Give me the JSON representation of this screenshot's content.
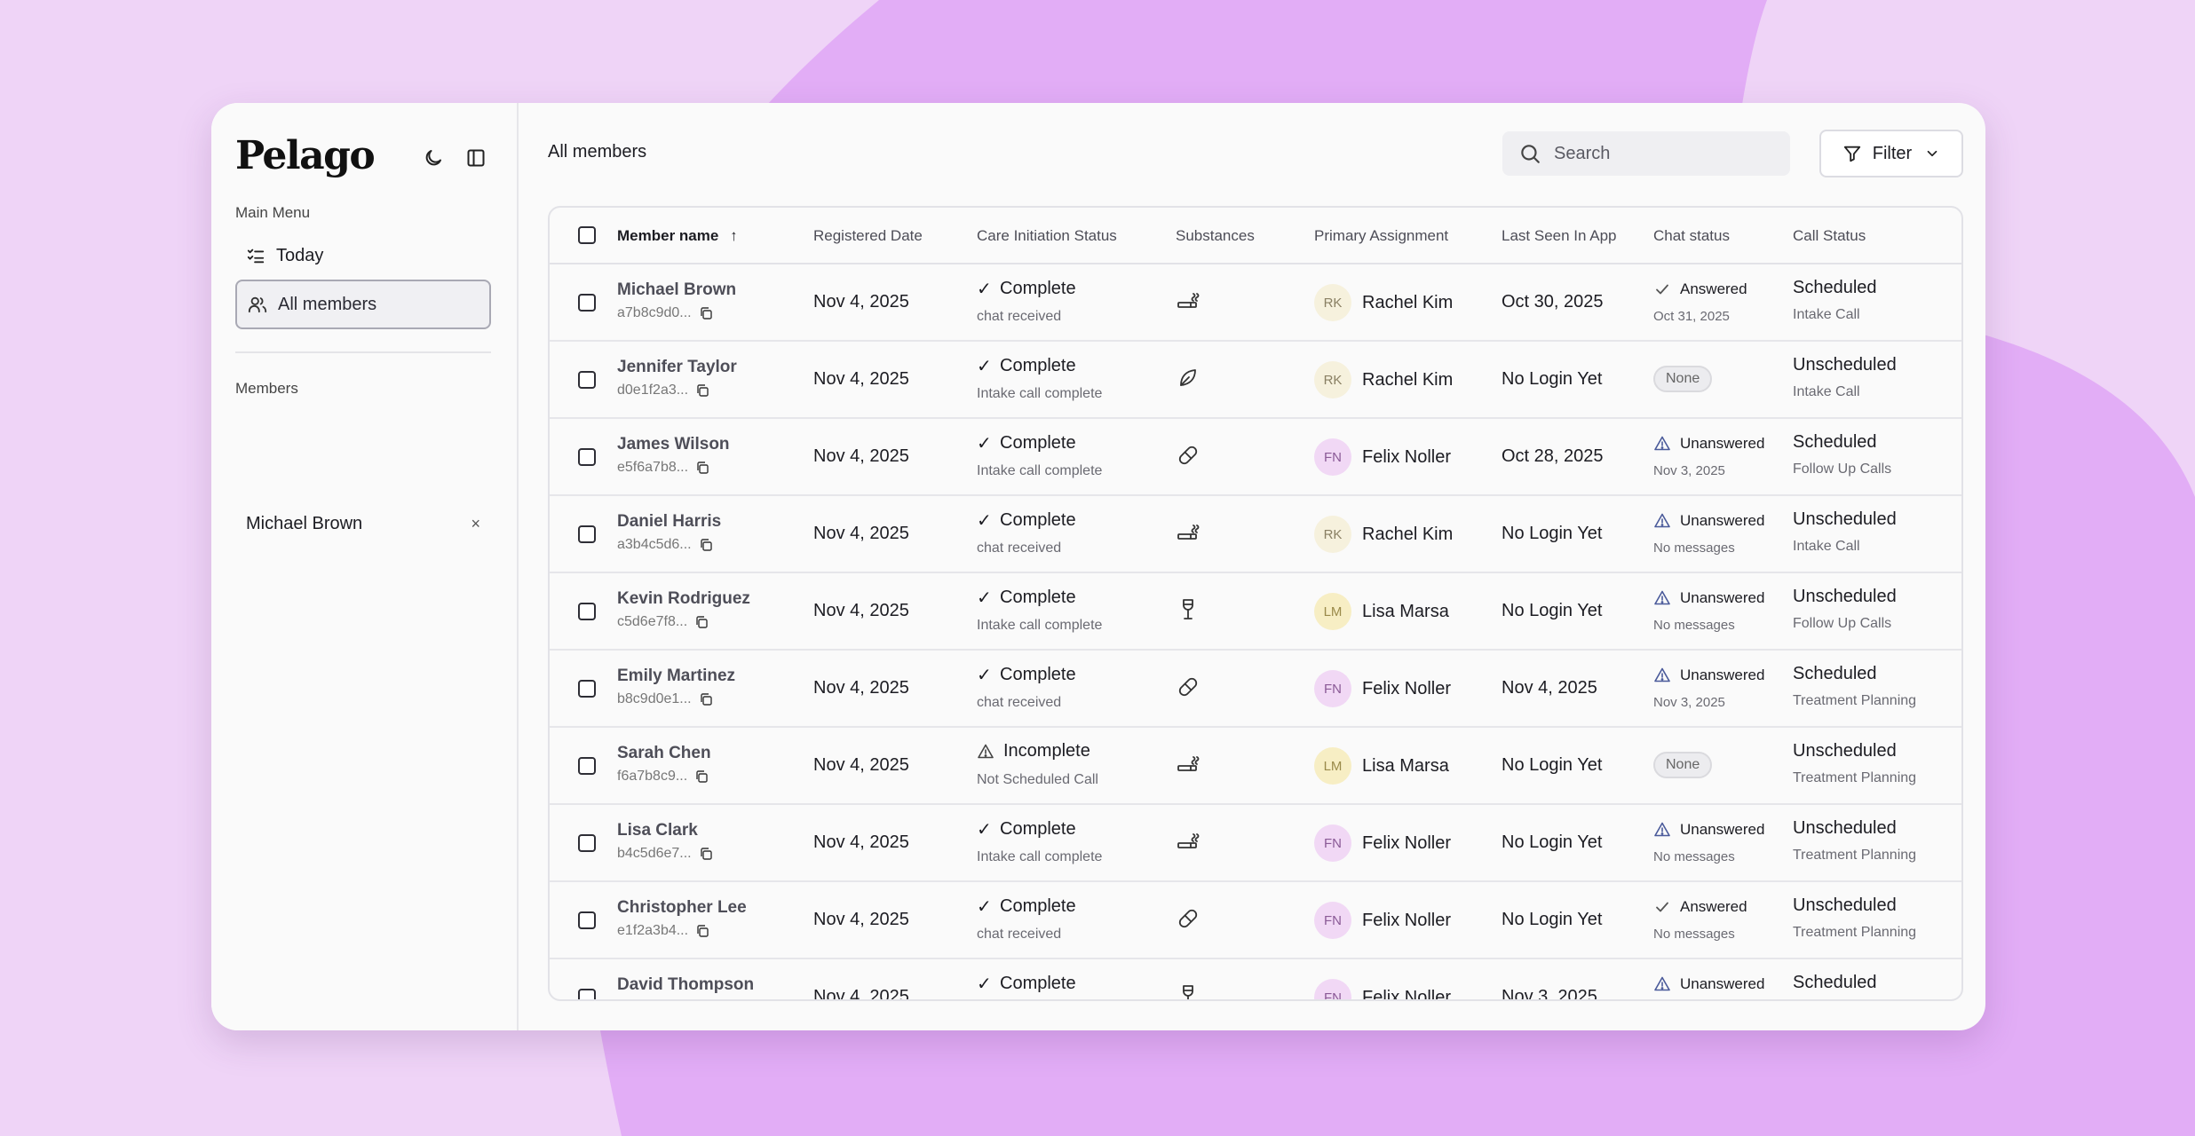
{
  "app": {
    "logo": "Pelago"
  },
  "sidebar": {
    "main_menu_label": "Main Menu",
    "nav": [
      {
        "label": "Today",
        "icon": "checklist-icon",
        "active": false
      },
      {
        "label": "All members",
        "icon": "users-icon",
        "active": true
      }
    ],
    "members_label": "Members",
    "members": [
      {
        "name": "Michael Brown",
        "close": "×"
      }
    ],
    "icons": [
      "moon-icon",
      "sidebar-toggle-icon"
    ]
  },
  "header": {
    "title": "All members",
    "search_placeholder": "Search",
    "filter_label": "Filter"
  },
  "table": {
    "columns": [
      "Member name",
      "Registered Date",
      "Care Initiation Status",
      "Substances",
      "Primary Assignment",
      "Last Seen In App",
      "Chat status",
      "Call Status"
    ],
    "sort_indicator": "↑",
    "rows": [
      {
        "name": "Michael Brown",
        "id": "a7b8c9d0...",
        "registered": "Nov 4, 2025",
        "care": "Complete",
        "care_sub": "chat received",
        "care_icon": "check",
        "substance": "cigarette-icon",
        "initials": "RK",
        "assignee": "Rachel Kim",
        "last_seen": "Oct 30, 2025",
        "chat": "Answered",
        "chat_icon": "check",
        "chat_sub": "Oct 31, 2025",
        "call": "Scheduled",
        "call_sub": "Intake Call"
      },
      {
        "name": "Jennifer Taylor",
        "id": "d0e1f2a3...",
        "registered": "Nov 4, 2025",
        "care": "Complete",
        "care_sub": "Intake call complete",
        "care_icon": "check",
        "substance": "leaf-icon",
        "initials": "RK",
        "assignee": "Rachel Kim",
        "last_seen": "No Login Yet",
        "chat": "None",
        "chat_icon": "pill",
        "chat_sub": "",
        "call": "Unscheduled",
        "call_sub": "Intake Call"
      },
      {
        "name": "James Wilson",
        "id": "e5f6a7b8...",
        "registered": "Nov 4, 2025",
        "care": "Complete",
        "care_sub": "Intake call complete",
        "care_icon": "check",
        "substance": "capsule-icon",
        "initials": "FN",
        "assignee": "Felix Noller",
        "last_seen": "Oct 28, 2025",
        "chat": "Unanswered",
        "chat_icon": "warning",
        "chat_sub": "Nov 3, 2025",
        "call": "Scheduled",
        "call_sub": "Follow Up Calls"
      },
      {
        "name": "Daniel Harris",
        "id": "a3b4c5d6...",
        "registered": "Nov 4, 2025",
        "care": "Complete",
        "care_sub": "chat received",
        "care_icon": "check",
        "substance": "cigarette-icon",
        "initials": "RK",
        "assignee": "Rachel Kim",
        "last_seen": "No Login Yet",
        "chat": "Unanswered",
        "chat_icon": "warning",
        "chat_sub": "No messages",
        "call": "Unscheduled",
        "call_sub": "Intake Call"
      },
      {
        "name": "Kevin Rodriguez",
        "id": "c5d6e7f8...",
        "registered": "Nov 4, 2025",
        "care": "Complete",
        "care_sub": "Intake call complete",
        "care_icon": "check",
        "substance": "wine-glass-icon",
        "initials": "LM",
        "assignee": "Lisa Marsa",
        "last_seen": "No Login Yet",
        "chat": "Unanswered",
        "chat_icon": "warning",
        "chat_sub": "No messages",
        "call": "Unscheduled",
        "call_sub": "Follow Up Calls"
      },
      {
        "name": "Emily Martinez",
        "id": "b8c9d0e1...",
        "registered": "Nov 4, 2025",
        "care": "Complete",
        "care_sub": "chat received",
        "care_icon": "check",
        "substance": "capsule-icon",
        "initials": "FN",
        "assignee": "Felix Noller",
        "last_seen": "Nov 4, 2025",
        "chat": "Unanswered",
        "chat_icon": "warning",
        "chat_sub": "Nov 3, 2025",
        "call": "Scheduled",
        "call_sub": "Treatment Planning"
      },
      {
        "name": "Sarah Chen",
        "id": "f6a7b8c9...",
        "registered": "Nov 4, 2025",
        "care": "Incomplete",
        "care_sub": "Not Scheduled Call",
        "care_icon": "warning",
        "substance": "cigarette-icon",
        "initials": "LM",
        "assignee": "Lisa Marsa",
        "last_seen": "No Login Yet",
        "chat": "None",
        "chat_icon": "pill",
        "chat_sub": "",
        "call": "Unscheduled",
        "call_sub": "Treatment Planning"
      },
      {
        "name": "Lisa Clark",
        "id": "b4c5d6e7...",
        "registered": "Nov 4, 2025",
        "care": "Complete",
        "care_sub": "Intake call complete",
        "care_icon": "check",
        "substance": "cigarette-icon",
        "initials": "FN",
        "assignee": "Felix Noller",
        "last_seen": "No Login Yet",
        "chat": "Unanswered",
        "chat_icon": "warning",
        "chat_sub": "No messages",
        "call": "Unscheduled",
        "call_sub": "Treatment Planning"
      },
      {
        "name": "Christopher Lee",
        "id": "e1f2a3b4...",
        "registered": "Nov 4, 2025",
        "care": "Complete",
        "care_sub": "chat received",
        "care_icon": "check",
        "substance": "capsule-icon",
        "initials": "FN",
        "assignee": "Felix Noller",
        "last_seen": "No Login Yet",
        "chat": "Answered",
        "chat_icon": "check",
        "chat_sub": "No messages",
        "call": "Unscheduled",
        "call_sub": "Treatment Planning"
      },
      {
        "name": "David Thompson",
        "id": "",
        "registered": "Nov 4, 2025",
        "care": "Complete",
        "care_sub": "",
        "care_icon": "check",
        "substance": "wine-glass-icon",
        "initials": "FN",
        "assignee": "Felix Noller",
        "last_seen": "Nov 3, 2025",
        "chat": "Unanswered",
        "chat_icon": "warning",
        "chat_sub": "",
        "call": "Scheduled",
        "call_sub": ""
      }
    ]
  },
  "avatar_colors": {
    "RK": {
      "bg": "#f6f1dd",
      "fg": "#8a8064"
    },
    "FN": {
      "bg": "#f1d8f5",
      "fg": "#8a5a96"
    },
    "LM": {
      "bg": "#f7eec4",
      "fg": "#9a8a4a"
    }
  },
  "colors": {
    "background": "#efd4f7",
    "blob": "#e2adf6",
    "warning_icon": "#4a5a9a"
  }
}
